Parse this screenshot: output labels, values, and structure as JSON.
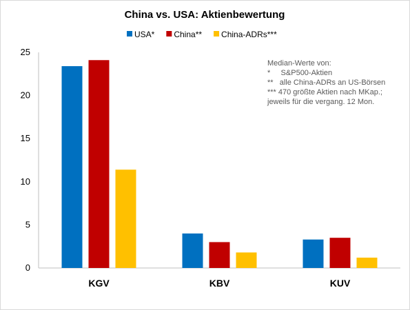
{
  "chart_data": {
    "type": "bar",
    "title": "China vs. USA: Aktienbewertung",
    "categories": [
      "KGV",
      "KBV",
      "KUV"
    ],
    "series": [
      {
        "name": "USA*",
        "color": "#0070c0",
        "values": [
          23.4,
          4.0,
          3.3
        ]
      },
      {
        "name": "China**",
        "color": "#c00000",
        "values": [
          24.1,
          3.0,
          3.5
        ]
      },
      {
        "name": "China-ADRs***",
        "color": "#ffc000",
        "values": [
          11.4,
          1.8,
          1.2
        ]
      }
    ],
    "ylim": [
      0,
      25
    ],
    "yticks": [
      "0",
      "5",
      "10",
      "15",
      "20",
      "25"
    ],
    "grid": false,
    "legend_position": "top",
    "annotation": [
      "Median-Werte von:",
      "*     S&P500-Aktien",
      "**   alle China-ADRs an US-Börsen",
      "*** 470 größte Aktien nach MKap.;",
      "jeweils für die vergang. 12 Mon."
    ]
  }
}
